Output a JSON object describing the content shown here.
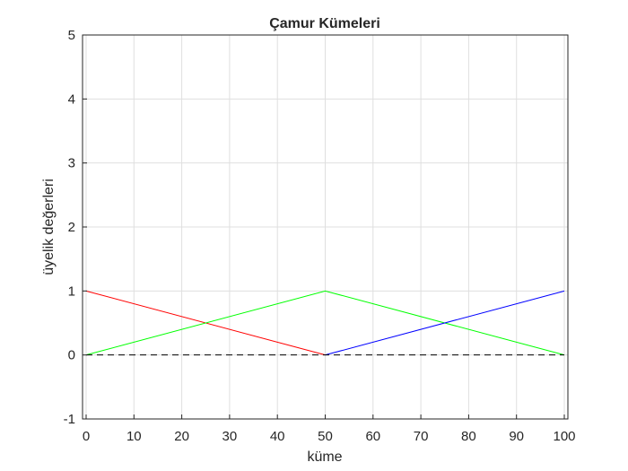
{
  "chart_data": {
    "type": "line",
    "title": "Çamur Kümeleri",
    "xlabel": "küme",
    "ylabel": "üyelik değerleri",
    "xlim": [
      0,
      100
    ],
    "ylim": [
      -1,
      5
    ],
    "xticks": [
      0,
      10,
      20,
      30,
      40,
      50,
      60,
      70,
      80,
      90,
      100
    ],
    "yticks": [
      -1,
      0,
      1,
      2,
      3,
      4,
      5
    ],
    "xtick_labels": [
      "0",
      "10",
      "20",
      "30",
      "40",
      "50",
      "60",
      "70",
      "80",
      "90",
      "100"
    ],
    "ytick_labels": [
      "-1",
      "0",
      "1",
      "2",
      "3",
      "4",
      "5"
    ],
    "grid": true,
    "series": [
      {
        "name": "red",
        "color": "#ff0000",
        "style": "solid",
        "x": [
          0,
          50
        ],
        "y": [
          1,
          0
        ]
      },
      {
        "name": "green",
        "color": "#00ff00",
        "style": "solid",
        "x": [
          0,
          50,
          100
        ],
        "y": [
          0,
          1,
          0
        ]
      },
      {
        "name": "blue",
        "color": "#0000ff",
        "style": "solid",
        "x": [
          50,
          100
        ],
        "y": [
          0,
          1
        ]
      },
      {
        "name": "baseline",
        "color": "#000000",
        "style": "dashed",
        "x": [
          0,
          100
        ],
        "y": [
          0,
          0
        ]
      }
    ]
  }
}
